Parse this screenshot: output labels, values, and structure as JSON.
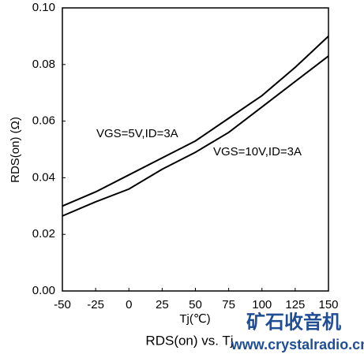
{
  "chart_data": {
    "type": "line",
    "title": "RDS(on) vs. Tj",
    "x_label": "Tj(℃)",
    "y_label": "RDS(on) (Ω)",
    "x": [
      -50,
      -25,
      0,
      25,
      50,
      75,
      100,
      125,
      150
    ],
    "series": [
      {
        "name": "VGS=5V,ID=3A",
        "color": "#000000",
        "values": [
          0.03,
          0.035,
          0.041,
          0.047,
          0.053,
          0.061,
          0.069,
          0.079,
          0.09
        ]
      },
      {
        "name": "VGS=10V,ID=3A",
        "color": "#000000",
        "values": [
          0.0265,
          0.0315,
          0.036,
          0.043,
          0.049,
          0.056,
          0.065,
          0.074,
          0.083
        ]
      }
    ],
    "xlim": [
      -50,
      150
    ],
    "xticks": [
      -50,
      -25,
      0,
      25,
      50,
      75,
      100,
      125,
      150
    ],
    "ylim": [
      0,
      0.1
    ],
    "yticks": [
      {
        "value": 0,
        "label": "0.00"
      },
      0.02,
      0.04,
      0.06,
      0.08,
      {
        "value": 0.1,
        "label": "0.10"
      }
    ],
    "grid": false,
    "watermark": [
      "矿石收音机",
      "www.crystalradio.cn"
    ]
  }
}
